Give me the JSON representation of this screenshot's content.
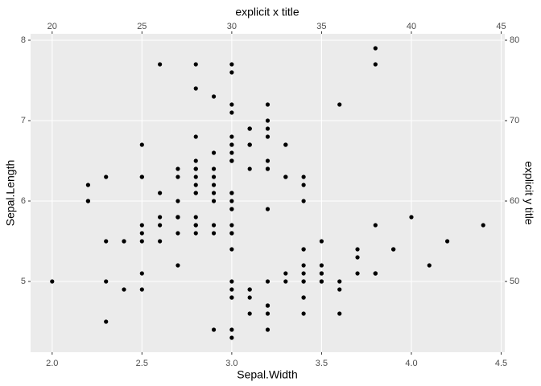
{
  "chart_data": {
    "type": "scatter",
    "x_label": "Sepal.Width",
    "y_label": "Sepal.Length",
    "x2_label": "explicit x title",
    "y2_label": "explicit y title",
    "x": [
      3.5,
      3.0,
      3.2,
      3.1,
      3.6,
      3.9,
      3.4,
      3.4,
      2.9,
      3.1,
      3.7,
      3.4,
      3.0,
      3.0,
      4.0,
      4.4,
      3.9,
      3.5,
      3.8,
      3.8,
      3.4,
      3.7,
      3.6,
      3.3,
      3.4,
      3.0,
      3.4,
      3.5,
      3.4,
      3.2,
      3.1,
      3.4,
      4.1,
      4.2,
      3.1,
      3.2,
      3.5,
      3.6,
      3.0,
      3.4,
      3.5,
      2.3,
      3.2,
      3.5,
      3.8,
      3.0,
      3.8,
      3.2,
      3.7,
      3.3,
      3.2,
      3.2,
      3.1,
      2.3,
      2.8,
      2.8,
      3.3,
      2.4,
      2.9,
      2.7,
      2.0,
      3.0,
      2.2,
      2.9,
      2.9,
      3.1,
      3.0,
      2.7,
      2.2,
      2.5,
      3.2,
      2.8,
      2.5,
      2.8,
      2.9,
      3.0,
      2.8,
      3.0,
      2.9,
      2.6,
      2.4,
      2.4,
      2.7,
      2.7,
      3.0,
      3.4,
      3.1,
      2.3,
      3.0,
      2.5,
      2.6,
      3.0,
      2.6,
      2.3,
      2.7,
      3.0,
      2.9,
      2.9,
      2.5,
      2.8,
      3.3,
      2.7,
      3.0,
      2.9,
      3.0,
      3.0,
      2.5,
      2.9,
      2.5,
      3.6,
      3.2,
      2.7,
      3.0,
      2.5,
      2.8,
      3.2,
      3.0,
      3.8,
      2.6,
      2.2,
      3.2,
      2.8,
      2.8,
      2.7,
      3.3,
      3.2,
      2.8,
      3.0,
      2.8,
      3.0,
      2.8,
      3.8,
      2.8,
      2.8,
      2.6,
      3.0,
      3.4,
      3.1,
      3.0,
      3.1,
      3.1,
      3.1,
      2.7,
      3.2,
      3.3,
      3.0,
      2.5,
      3.0,
      3.4,
      3.0
    ],
    "values": [
      5.1,
      4.9,
      4.7,
      4.6,
      5.0,
      5.4,
      4.6,
      5.0,
      4.4,
      4.9,
      5.4,
      4.8,
      4.8,
      4.3,
      5.8,
      5.7,
      5.4,
      5.1,
      5.7,
      5.1,
      5.4,
      5.1,
      4.6,
      5.1,
      4.8,
      5.0,
      5.0,
      5.2,
      5.2,
      4.7,
      4.8,
      5.4,
      5.2,
      5.5,
      4.9,
      5.0,
      5.5,
      4.9,
      4.4,
      5.1,
      5.0,
      4.5,
      4.4,
      5.0,
      5.1,
      4.8,
      5.1,
      4.6,
      5.3,
      5.0,
      7.0,
      6.4,
      6.9,
      5.5,
      6.5,
      5.7,
      6.3,
      4.9,
      6.6,
      5.2,
      5.0,
      5.9,
      6.0,
      6.1,
      5.6,
      6.7,
      5.6,
      5.8,
      6.2,
      5.6,
      5.9,
      6.1,
      6.3,
      6.1,
      6.4,
      6.6,
      6.8,
      6.7,
      6.0,
      5.7,
      5.5,
      5.5,
      5.8,
      6.0,
      5.4,
      6.0,
      6.7,
      6.3,
      5.6,
      5.5,
      5.5,
      6.1,
      5.8,
      5.0,
      5.6,
      5.7,
      5.7,
      6.2,
      5.1,
      5.7,
      6.3,
      5.8,
      7.1,
      6.3,
      6.5,
      7.6,
      4.9,
      7.3,
      6.7,
      7.2,
      6.5,
      6.4,
      6.8,
      5.7,
      5.8,
      6.4,
      6.5,
      7.7,
      7.7,
      6.0,
      6.9,
      5.6,
      7.7,
      6.3,
      6.7,
      7.2,
      6.2,
      6.1,
      6.4,
      7.2,
      7.4,
      7.9,
      6.4,
      6.3,
      6.1,
      7.7,
      6.3,
      6.4,
      6.0,
      6.9,
      6.7,
      6.9,
      5.8,
      6.8,
      6.7,
      6.7,
      6.3,
      6.5,
      6.2,
      5.9
    ],
    "color": "#000000",
    "xlim": [
      1.88,
      4.52
    ],
    "ylim": [
      4.12,
      8.08
    ],
    "xticks": [
      {
        "value": 2,
        "label": "2.0"
      },
      2.5,
      {
        "value": 3,
        "label": "3.0"
      },
      3.5,
      {
        "value": 4,
        "label": "4.0"
      },
      4.5
    ],
    "yticks": [
      5,
      6,
      7,
      8
    ],
    "x2lim": [
      18.8,
      45.2
    ],
    "x2ticks": [
      20,
      25,
      30,
      35,
      40,
      45
    ],
    "y2lim": [
      41.2,
      80.8
    ],
    "y2ticks": [
      50,
      60,
      70,
      80
    ],
    "grid": true,
    "background": "#ebebeb"
  }
}
